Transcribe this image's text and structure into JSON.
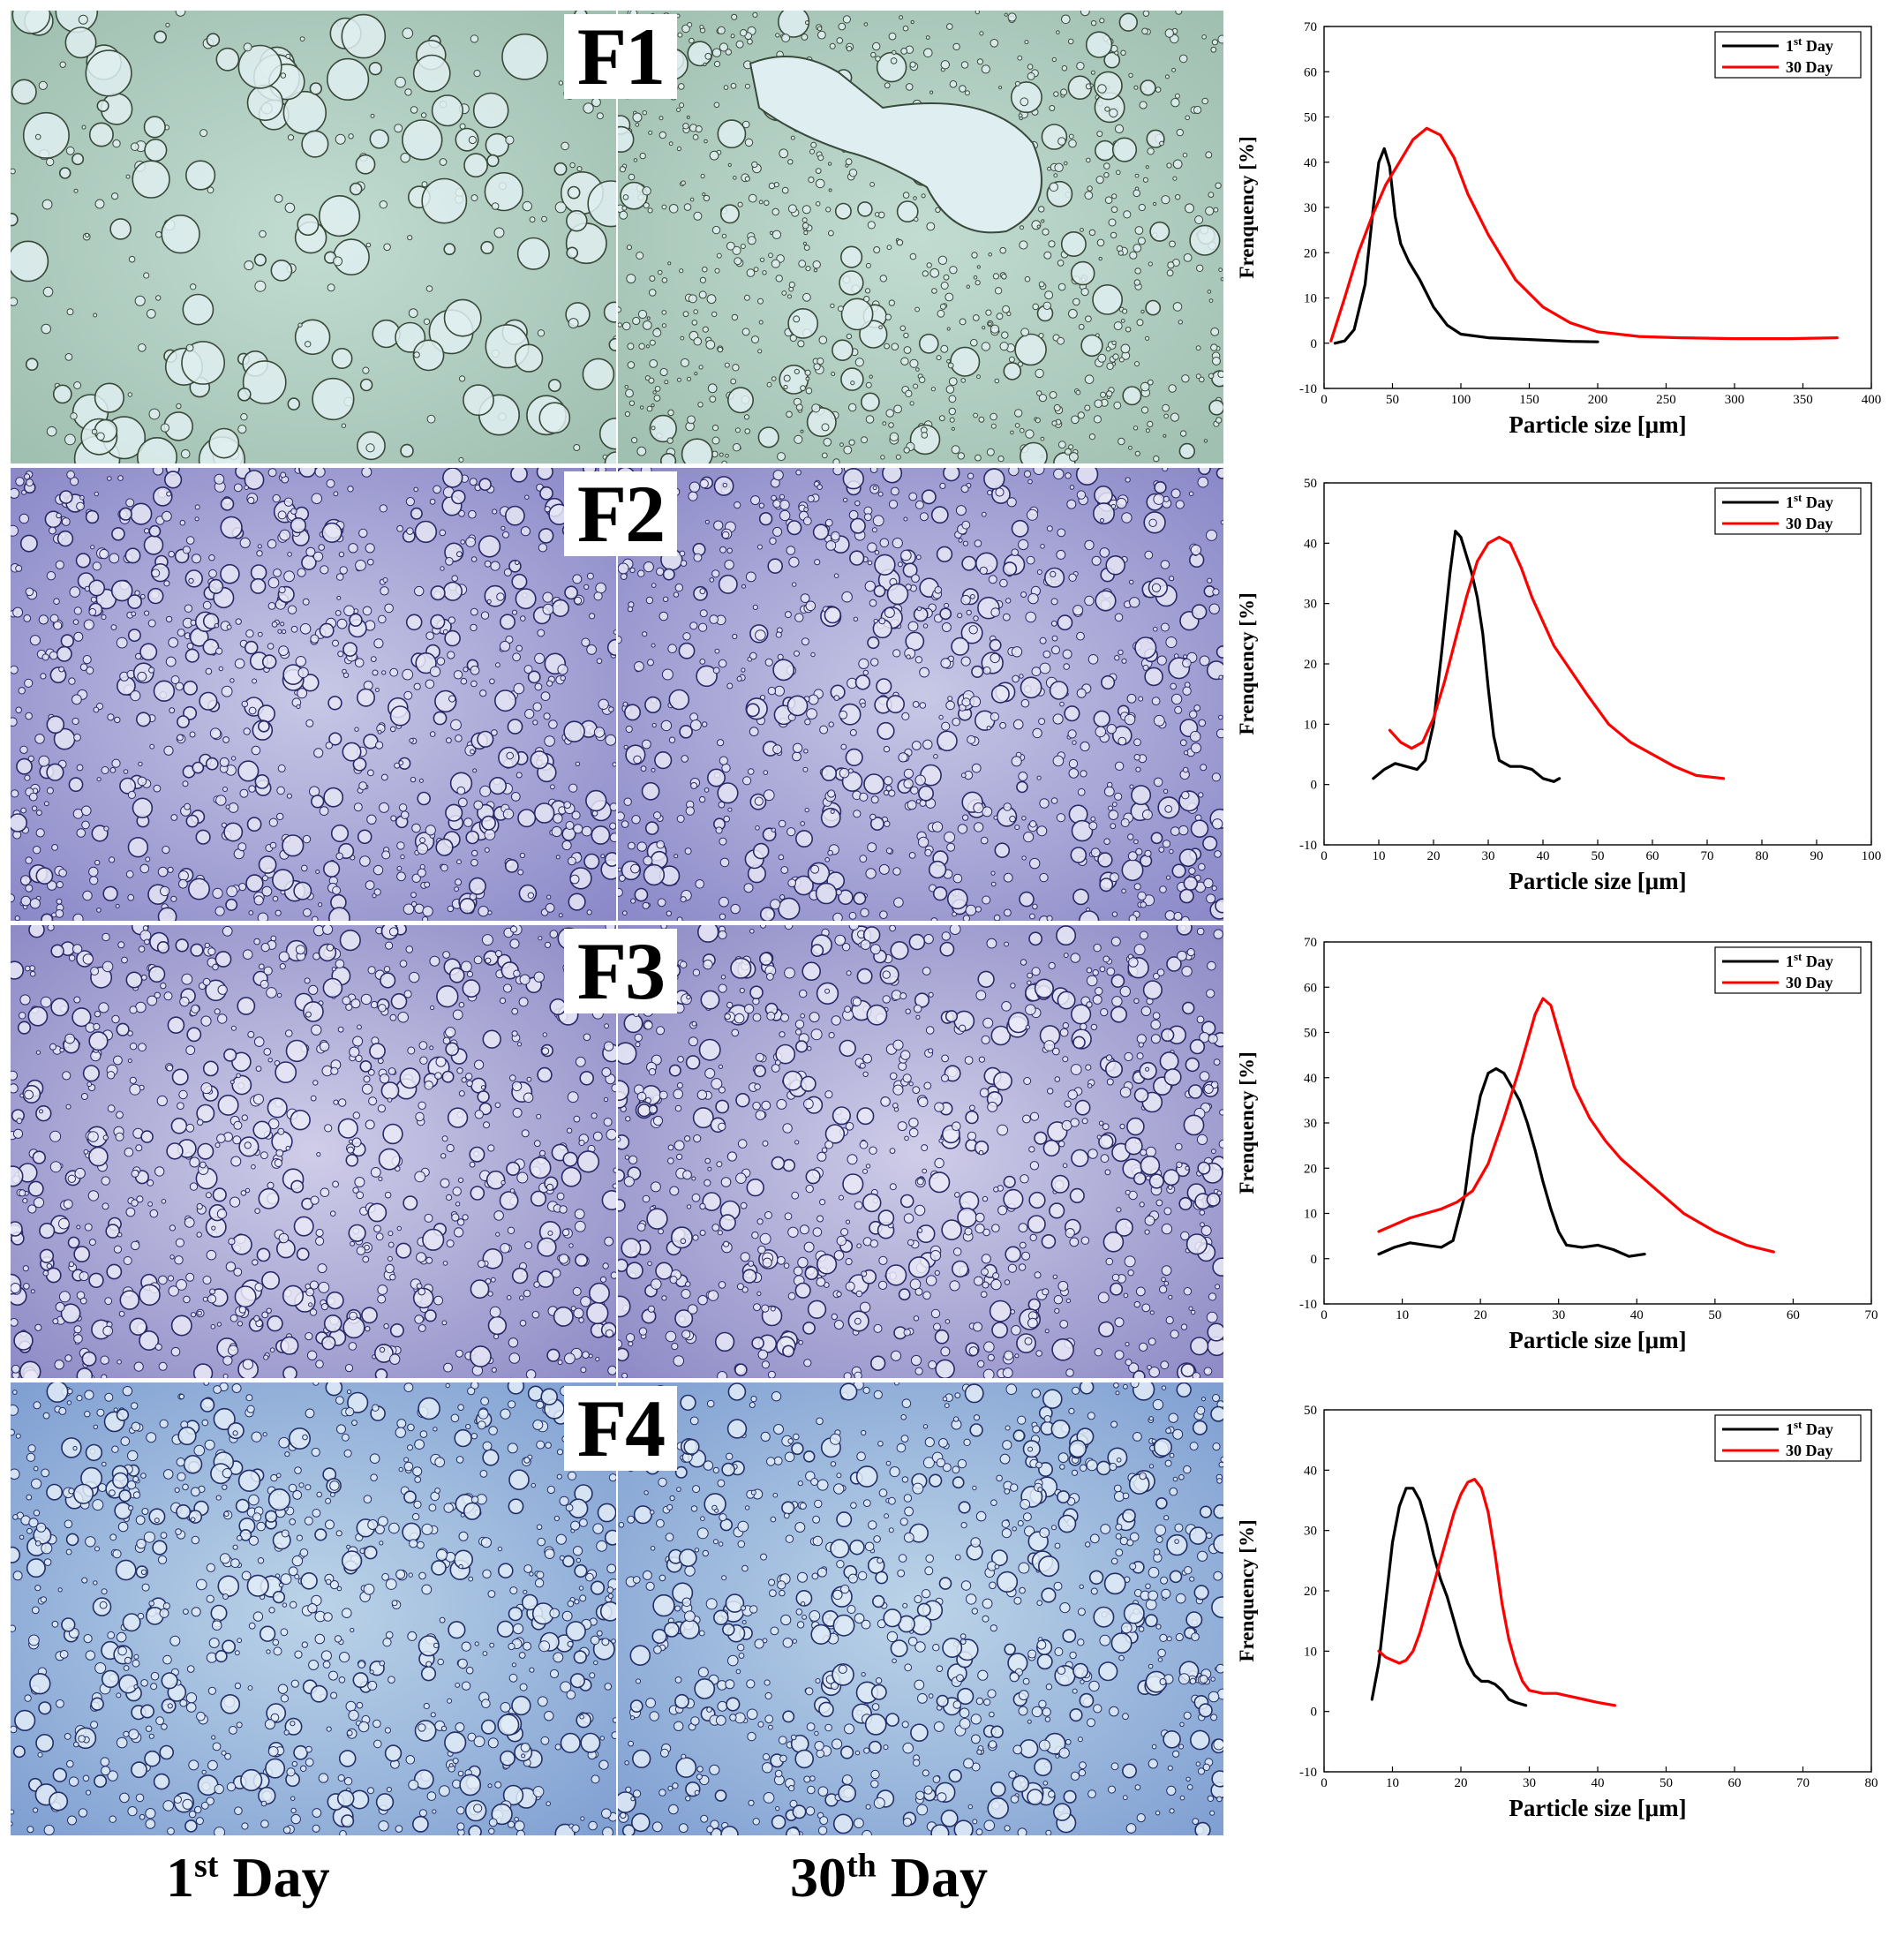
{
  "panels": [
    {
      "id": "F1",
      "label": "F1"
    },
    {
      "id": "F2",
      "label": "F2"
    },
    {
      "id": "F3",
      "label": "F3"
    },
    {
      "id": "F4",
      "label": "F4"
    }
  ],
  "columns": {
    "day1": {
      "main": "1",
      "sup": "st",
      "rest": " Day"
    },
    "day30": {
      "main": "30",
      "sup": "th",
      "rest": " Day"
    }
  },
  "micro_colors": {
    "F1": {
      "bg": "#c2dcd2",
      "bgDark": "#9fbfb0",
      "ring": "#3a4a3a",
      "fill": "#dfeef0"
    },
    "F2": {
      "bg": "#c8c8e6",
      "bgDark": "#8a88c8",
      "ring": "#2a2a6a",
      "fill": "#e6e6f6"
    },
    "F3": {
      "bg": "#cfcde8",
      "bgDark": "#8e8ac6",
      "ring": "#2a2a6a",
      "fill": "#eaeaf8"
    },
    "F4": {
      "bg": "#bcd4e8",
      "bgDark": "#7f9fd2",
      "ring": "#23306a",
      "fill": "#e2ecf8"
    }
  },
  "chart_data": [
    {
      "type": "line",
      "panel": "F1",
      "xlabel": "Particle size [μm]",
      "ylabel": "Frenquency [%]",
      "xlim": [
        0,
        400
      ],
      "ylim": [
        -10,
        70
      ],
      "xticks": [
        0,
        50,
        100,
        150,
        200,
        250,
        300,
        350,
        400
      ],
      "yticks": [
        -10,
        0,
        10,
        20,
        30,
        40,
        50,
        60,
        70
      ],
      "legend_position": "top-right",
      "grid": false,
      "series": [
        {
          "name": "1st Day",
          "legend_main": "1",
          "legend_sup": "st",
          "legend_rest": " Day",
          "color": "#000000",
          "x": [
            8,
            15,
            22,
            30,
            36,
            40,
            44,
            48,
            52,
            56,
            62,
            70,
            80,
            90,
            100,
            120,
            150,
            180,
            200
          ],
          "y": [
            0,
            0.5,
            3,
            13,
            30,
            40,
            43,
            39,
            28,
            22,
            18,
            14,
            8,
            4,
            2,
            1.2,
            0.8,
            0.4,
            0.3
          ]
        },
        {
          "name": "30 Day",
          "legend_main": "30",
          "legend_sup": "",
          "legend_rest": " Day",
          "color": "#ff0000",
          "x": [
            5,
            15,
            25,
            35,
            45,
            55,
            65,
            75,
            85,
            95,
            105,
            120,
            140,
            160,
            180,
            200,
            230,
            260,
            300,
            340,
            375
          ],
          "y": [
            0.5,
            10,
            20,
            28,
            35,
            40,
            45,
            47.5,
            46,
            41,
            33,
            24,
            14,
            8,
            4.5,
            2.5,
            1.5,
            1.2,
            1.0,
            1.0,
            1.2
          ]
        }
      ]
    },
    {
      "type": "line",
      "panel": "F2",
      "xlabel": "Particle size [μm]",
      "ylabel": "Frenquency [%]",
      "xlim": [
        0,
        100
      ],
      "ylim": [
        -10,
        50
      ],
      "xticks": [
        0,
        10,
        20,
        30,
        40,
        50,
        60,
        70,
        80,
        90,
        100
      ],
      "yticks": [
        -10,
        0,
        10,
        20,
        30,
        40,
        50
      ],
      "legend_position": "top-right",
      "grid": false,
      "series": [
        {
          "name": "1st Day",
          "legend_main": "1",
          "legend_sup": "st",
          "legend_rest": " Day",
          "color": "#000000",
          "x": [
            9,
            11,
            13,
            15,
            17,
            18.5,
            20,
            21.5,
            23,
            24,
            25,
            26,
            27,
            28,
            29,
            30,
            31,
            32,
            34,
            36,
            38,
            40,
            42,
            43
          ],
          "y": [
            1,
            2.5,
            3.5,
            3,
            2.5,
            4,
            10,
            22,
            35,
            42,
            41,
            38,
            35,
            31,
            25,
            16,
            8,
            4,
            3,
            3,
            2.5,
            1,
            0.5,
            1
          ]
        },
        {
          "name": "30 Day",
          "legend_main": "30",
          "legend_sup": "",
          "legend_rest": " Day",
          "color": "#ff0000",
          "x": [
            12,
            14,
            16,
            18,
            20,
            22,
            24,
            26,
            28,
            30,
            32,
            34,
            36,
            38,
            40,
            42,
            45,
            48,
            52,
            56,
            60,
            64,
            68,
            73
          ],
          "y": [
            9,
            7,
            6,
            7,
            11,
            17,
            24,
            31,
            37,
            40,
            41,
            40,
            36,
            31,
            27,
            23,
            19,
            15,
            10,
            7,
            5,
            3,
            1.5,
            1
          ]
        }
      ]
    },
    {
      "type": "line",
      "panel": "F3",
      "xlabel": "Particle size [μm]",
      "ylabel": "Frenquency [%]",
      "xlim": [
        0,
        70
      ],
      "ylim": [
        -10,
        70
      ],
      "xticks": [
        0,
        10,
        20,
        30,
        40,
        50,
        60,
        70
      ],
      "yticks": [
        -10,
        0,
        10,
        20,
        30,
        40,
        50,
        60,
        70
      ],
      "legend_position": "top-right",
      "grid": false,
      "series": [
        {
          "name": "1st Day",
          "legend_main": "1",
          "legend_sup": "st",
          "legend_rest": " Day",
          "color": "#000000",
          "x": [
            7,
            9,
            11,
            13,
            15,
            16.5,
            18,
            19,
            20,
            21,
            22,
            23,
            24,
            25,
            26,
            27,
            28,
            29,
            30,
            31,
            33,
            35,
            37,
            39,
            41
          ],
          "y": [
            1,
            2.5,
            3.5,
            3,
            2.5,
            4,
            14,
            27,
            36,
            41,
            42,
            41,
            38,
            35,
            30,
            24,
            17,
            11,
            6,
            3,
            2.5,
            3,
            2,
            0.5,
            1
          ]
        },
        {
          "name": "30 Day",
          "legend_main": "30",
          "legend_sup": "",
          "legend_rest": " Day",
          "color": "#ff0000",
          "x": [
            7,
            9,
            11,
            13,
            15,
            17,
            19,
            21,
            23,
            25,
            26,
            27,
            28,
            29,
            30,
            31,
            32,
            34,
            36,
            38,
            40,
            42,
            44,
            46,
            48,
            50,
            52,
            54,
            57.5
          ],
          "y": [
            6,
            7.5,
            9,
            10,
            11,
            12.5,
            15,
            21,
            31,
            42,
            48,
            54,
            57.5,
            56,
            50,
            44,
            38,
            31,
            26,
            22,
            19,
            16,
            13,
            10,
            8,
            6,
            4.5,
            3,
            1.5
          ]
        }
      ]
    },
    {
      "type": "line",
      "panel": "F4",
      "xlabel": "Particle size [μm]",
      "ylabel": "Frenquency [%]",
      "xlim": [
        0,
        80
      ],
      "ylim": [
        -10,
        50
      ],
      "xticks": [
        0,
        10,
        20,
        30,
        40,
        50,
        60,
        70,
        80
      ],
      "yticks": [
        -10,
        0,
        10,
        20,
        30,
        40,
        50
      ],
      "legend_position": "top-right",
      "grid": false,
      "series": [
        {
          "name": "1st Day",
          "legend_main": "1",
          "legend_sup": "st",
          "legend_rest": " Day",
          "color": "#000000",
          "x": [
            7,
            8,
            9,
            10,
            11,
            12,
            13,
            14,
            15,
            16,
            17,
            18,
            19,
            20,
            21,
            22,
            23,
            24,
            25,
            26,
            27,
            28,
            29.5
          ],
          "y": [
            2,
            8,
            18,
            28,
            34,
            37,
            37,
            35,
            31,
            26,
            22,
            19,
            15,
            11,
            8,
            6,
            5,
            5,
            4.5,
            3.5,
            2,
            1.5,
            1
          ]
        },
        {
          "name": "30 Day",
          "legend_main": "30",
          "legend_sup": "",
          "legend_rest": " Day",
          "color": "#ff0000",
          "x": [
            8,
            9,
            10,
            11,
            12,
            13,
            14,
            15,
            16,
            17,
            18,
            19,
            20,
            21,
            22,
            23,
            24,
            25,
            26,
            27,
            28,
            29,
            30,
            32,
            34,
            36,
            38,
            40,
            42.5
          ],
          "y": [
            10,
            9,
            8.5,
            8,
            8.5,
            10,
            13,
            17,
            21,
            25,
            29,
            33,
            36,
            38,
            38.5,
            37,
            33,
            26,
            18,
            12,
            8,
            5,
            3.5,
            3,
            3,
            2.5,
            2,
            1.5,
            1
          ]
        }
      ]
    }
  ]
}
